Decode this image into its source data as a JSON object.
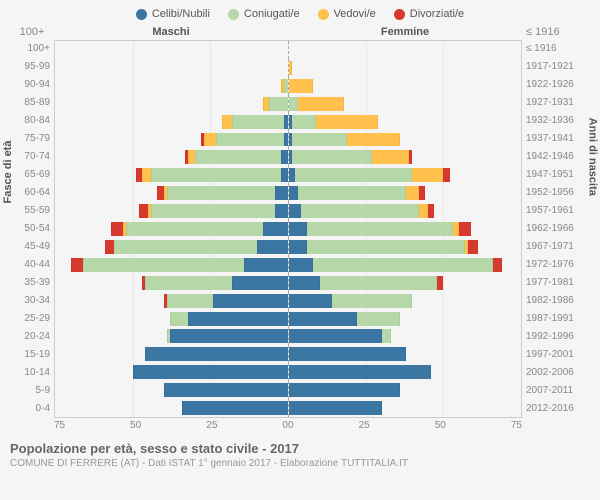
{
  "chart": {
    "type": "population-pyramid",
    "background": "#f5f5f5",
    "grid_color": "#e8e8e8",
    "axis_color": "#cccccc",
    "center_line": "#aaaaaa",
    "text_color": "#555555",
    "tick_color": "#888888",
    "xmax": 75,
    "xticks_left": [
      "75",
      "50",
      "25",
      "0"
    ],
    "xticks_right": [
      "0",
      "25",
      "50",
      "75"
    ],
    "legend": [
      {
        "label": "Celibi/Nubili",
        "color": "#3b76a3"
      },
      {
        "label": "Coniugati/e",
        "color": "#b6d7a8"
      },
      {
        "label": "Vedovi/e",
        "color": "#ffc04c"
      },
      {
        "label": "Divorziati/e",
        "color": "#d63a2e"
      }
    ],
    "header": {
      "left": "Maschi",
      "right": "Femmine"
    },
    "y_left_title": "Fasce di età",
    "y_right_title": "Anni di nascita",
    "rows": [
      {
        "age": "100+",
        "birth": "≤ 1916",
        "m": {
          "c": 0,
          "co": 0,
          "v": 0,
          "d": 0
        },
        "f": {
          "c": 0,
          "co": 0,
          "v": 0,
          "d": 0
        }
      },
      {
        "age": "95-99",
        "birth": "1917-1921",
        "m": {
          "c": 0,
          "co": 0,
          "v": 0,
          "d": 0
        },
        "f": {
          "c": 0,
          "co": 0,
          "v": 1,
          "d": 0
        }
      },
      {
        "age": "90-94",
        "birth": "1922-1926",
        "m": {
          "c": 0,
          "co": 1,
          "v": 1,
          "d": 0
        },
        "f": {
          "c": 0,
          "co": 0,
          "v": 8,
          "d": 0
        }
      },
      {
        "age": "85-89",
        "birth": "1927-1931",
        "m": {
          "c": 0,
          "co": 6,
          "v": 2,
          "d": 0
        },
        "f": {
          "c": 0,
          "co": 3,
          "v": 15,
          "d": 0
        }
      },
      {
        "age": "80-84",
        "birth": "1932-1936",
        "m": {
          "c": 1,
          "co": 17,
          "v": 3,
          "d": 0
        },
        "f": {
          "c": 1,
          "co": 8,
          "v": 20,
          "d": 0
        }
      },
      {
        "age": "75-79",
        "birth": "1937-1941",
        "m": {
          "c": 1,
          "co": 22,
          "v": 4,
          "d": 1
        },
        "f": {
          "c": 1,
          "co": 18,
          "v": 17,
          "d": 0
        }
      },
      {
        "age": "70-74",
        "birth": "1942-1946",
        "m": {
          "c": 2,
          "co": 28,
          "v": 2,
          "d": 1
        },
        "f": {
          "c": 1,
          "co": 26,
          "v": 12,
          "d": 1
        }
      },
      {
        "age": "65-69",
        "birth": "1947-1951",
        "m": {
          "c": 2,
          "co": 42,
          "v": 3,
          "d": 2
        },
        "f": {
          "c": 2,
          "co": 38,
          "v": 10,
          "d": 2
        }
      },
      {
        "age": "60-64",
        "birth": "1952-1956",
        "m": {
          "c": 4,
          "co": 35,
          "v": 1,
          "d": 2
        },
        "f": {
          "c": 3,
          "co": 35,
          "v": 4,
          "d": 2
        }
      },
      {
        "age": "55-59",
        "birth": "1957-1961",
        "m": {
          "c": 4,
          "co": 40,
          "v": 1,
          "d": 3
        },
        "f": {
          "c": 4,
          "co": 38,
          "v": 3,
          "d": 2
        }
      },
      {
        "age": "50-54",
        "birth": "1962-1966",
        "m": {
          "c": 8,
          "co": 44,
          "v": 1,
          "d": 4
        },
        "f": {
          "c": 6,
          "co": 47,
          "v": 2,
          "d": 4
        }
      },
      {
        "age": "45-49",
        "birth": "1967-1971",
        "m": {
          "c": 10,
          "co": 46,
          "v": 0,
          "d": 3
        },
        "f": {
          "c": 6,
          "co": 51,
          "v": 1,
          "d": 3
        }
      },
      {
        "age": "40-44",
        "birth": "1972-1976",
        "m": {
          "c": 14,
          "co": 52,
          "v": 0,
          "d": 4
        },
        "f": {
          "c": 8,
          "co": 58,
          "v": 0,
          "d": 3
        }
      },
      {
        "age": "35-39",
        "birth": "1977-1981",
        "m": {
          "c": 18,
          "co": 28,
          "v": 0,
          "d": 1
        },
        "f": {
          "c": 10,
          "co": 38,
          "v": 0,
          "d": 2
        }
      },
      {
        "age": "30-34",
        "birth": "1982-1986",
        "m": {
          "c": 24,
          "co": 15,
          "v": 0,
          "d": 1
        },
        "f": {
          "c": 14,
          "co": 26,
          "v": 0,
          "d": 0
        }
      },
      {
        "age": "25-29",
        "birth": "1987-1991",
        "m": {
          "c": 32,
          "co": 6,
          "v": 0,
          "d": 0
        },
        "f": {
          "c": 22,
          "co": 14,
          "v": 0,
          "d": 0
        }
      },
      {
        "age": "20-24",
        "birth": "1992-1996",
        "m": {
          "c": 38,
          "co": 1,
          "v": 0,
          "d": 0
        },
        "f": {
          "c": 30,
          "co": 3,
          "v": 0,
          "d": 0
        }
      },
      {
        "age": "15-19",
        "birth": "1997-2001",
        "m": {
          "c": 46,
          "co": 0,
          "v": 0,
          "d": 0
        },
        "f": {
          "c": 38,
          "co": 0,
          "v": 0,
          "d": 0
        }
      },
      {
        "age": "10-14",
        "birth": "2002-2006",
        "m": {
          "c": 50,
          "co": 0,
          "v": 0,
          "d": 0
        },
        "f": {
          "c": 46,
          "co": 0,
          "v": 0,
          "d": 0
        }
      },
      {
        "age": "5-9",
        "birth": "2007-2011",
        "m": {
          "c": 40,
          "co": 0,
          "v": 0,
          "d": 0
        },
        "f": {
          "c": 36,
          "co": 0,
          "v": 0,
          "d": 0
        }
      },
      {
        "age": "0-4",
        "birth": "2012-2016",
        "m": {
          "c": 34,
          "co": 0,
          "v": 0,
          "d": 0
        },
        "f": {
          "c": 30,
          "co": 0,
          "v": 0,
          "d": 0
        }
      }
    ]
  },
  "footer": {
    "title": "Popolazione per età, sesso e stato civile - 2017",
    "sub": "COMUNE DI FERRERE (AT) - Dati ISTAT 1° gennaio 2017 - Elaborazione TUTTITALIA.IT"
  }
}
